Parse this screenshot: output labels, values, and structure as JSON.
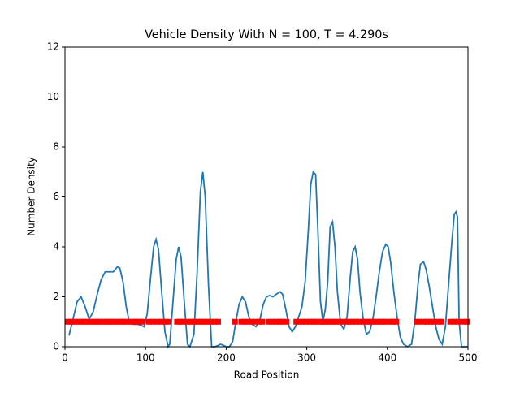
{
  "chart_data": {
    "type": "line",
    "title": "Vehicle Density With N = 100, T = 4.290s",
    "xlabel": "Road Position",
    "ylabel": "Number Density",
    "xlim": [
      0,
      500
    ],
    "ylim": [
      0,
      12
    ],
    "xticks": [
      0,
      100,
      200,
      300,
      400,
      500
    ],
    "yticks": [
      0,
      2,
      4,
      6,
      8,
      10,
      12
    ],
    "grid": false,
    "series": [
      {
        "color": "#1f77b4",
        "style": "line",
        "x": [
          5,
          10,
          15,
          20,
          25,
          30,
          35,
          40,
          45,
          50,
          55,
          60,
          65,
          68,
          72,
          76,
          80,
          85,
          90,
          95,
          98,
          102,
          106,
          110,
          113,
          116,
          120,
          124,
          128,
          130,
          134,
          138,
          141,
          144,
          148,
          152,
          155,
          160,
          164,
          168,
          171,
          174,
          178,
          182,
          186,
          190,
          193,
          197,
          200,
          204,
          208,
          212,
          216,
          220,
          224,
          228,
          232,
          237,
          242,
          246,
          250,
          254,
          258,
          262,
          267,
          270,
          274,
          278,
          282,
          286,
          290,
          294,
          298,
          302,
          305,
          308,
          311,
          314,
          317,
          320,
          323,
          326,
          329,
          332,
          335,
          338,
          342,
          346,
          350,
          354,
          357,
          360,
          363,
          366,
          370,
          374,
          378,
          382,
          386,
          390,
          394,
          398,
          401,
          404,
          408,
          412,
          416,
          420,
          425,
          430,
          434,
          438,
          441,
          445,
          448,
          452,
          456,
          460,
          464,
          468,
          472,
          476,
          480,
          483,
          485,
          487,
          489,
          492,
          496,
          500
        ],
        "values": [
          0.45,
          1.1,
          1.8,
          2.0,
          1.6,
          1.1,
          1.4,
          2.1,
          2.7,
          3.0,
          3.0,
          3.0,
          3.2,
          3.15,
          2.6,
          1.6,
          0.95,
          0.9,
          0.9,
          0.85,
          0.8,
          1.3,
          2.7,
          4.0,
          4.3,
          3.9,
          2.2,
          0.6,
          0,
          0.1,
          1.8,
          3.5,
          4.0,
          3.6,
          1.8,
          0.1,
          0,
          0.5,
          3.0,
          6.2,
          7.0,
          6.0,
          2.5,
          0,
          0,
          0.05,
          0.1,
          0.05,
          0,
          0,
          0.2,
          1.0,
          1.7,
          2.0,
          1.8,
          1.2,
          0.9,
          0.8,
          1.1,
          1.7,
          2.0,
          2.05,
          2.0,
          2.1,
          2.2,
          2.1,
          1.5,
          0.8,
          0.6,
          0.8,
          1.2,
          1.6,
          2.6,
          4.7,
          6.5,
          7.0,
          6.9,
          4.5,
          1.8,
          1.0,
          1.5,
          2.6,
          4.8,
          5.0,
          4.0,
          2.2,
          0.9,
          0.7,
          1.2,
          2.8,
          3.8,
          4.0,
          3.5,
          2.2,
          1.1,
          0.5,
          0.6,
          1.1,
          2.0,
          3.0,
          3.8,
          4.1,
          4.0,
          3.4,
          2.2,
          1.2,
          0.4,
          0.1,
          0,
          0.1,
          1.0,
          2.5,
          3.3,
          3.4,
          3.1,
          2.4,
          1.6,
          0.8,
          0.3,
          0.1,
          0.8,
          2.5,
          4.2,
          5.3,
          5.4,
          5.2,
          1.0,
          0,
          0,
          0
        ]
      },
      {
        "color": "#ff0000",
        "style": "square-markers",
        "x": [
          4,
          8,
          12,
          16,
          20,
          24,
          28,
          32,
          36,
          40,
          44,
          48,
          52,
          56,
          60,
          64,
          68,
          72,
          76,
          80,
          84,
          88,
          92,
          96,
          104,
          109,
          114,
          119,
          124,
          128,
          139,
          143,
          147,
          152,
          156,
          160,
          164,
          169,
          173,
          177,
          181,
          186,
          190,
          211,
          219,
          223,
          227,
          232,
          236,
          241,
          245,
          253,
          257,
          262,
          266,
          270,
          275,
          287,
          291,
          295,
          299,
          304,
          308,
          312,
          316,
          320,
          324,
          328,
          332,
          336,
          341,
          345,
          349,
          353,
          357,
          361,
          365,
          370,
          374,
          378,
          382,
          386,
          390,
          394,
          398,
          403,
          407,
          411,
          436,
          440,
          445,
          449,
          454,
          458,
          463,
          467,
          478,
          483,
          488,
          494,
          499
        ],
        "values": [
          1,
          1,
          1,
          1,
          1,
          1,
          1,
          1,
          1,
          1,
          1,
          1,
          1,
          1,
          1,
          1,
          1,
          1,
          1,
          1,
          1,
          1,
          1,
          1,
          1,
          1,
          1,
          1,
          1,
          1,
          1,
          1,
          1,
          1,
          1,
          1,
          1,
          1,
          1,
          1,
          1,
          1,
          1,
          1,
          1,
          1,
          1,
          1,
          1,
          1,
          1,
          1,
          1,
          1,
          1,
          1,
          1,
          1,
          1,
          1,
          1,
          1,
          1,
          1,
          1,
          1,
          1,
          1,
          1,
          1,
          1,
          1,
          1,
          1,
          1,
          1,
          1,
          1,
          1,
          1,
          1,
          1,
          1,
          1,
          1,
          1,
          1,
          1,
          1,
          1,
          1,
          1,
          1,
          1,
          1,
          1,
          1,
          1,
          1,
          1,
          1
        ]
      }
    ]
  }
}
